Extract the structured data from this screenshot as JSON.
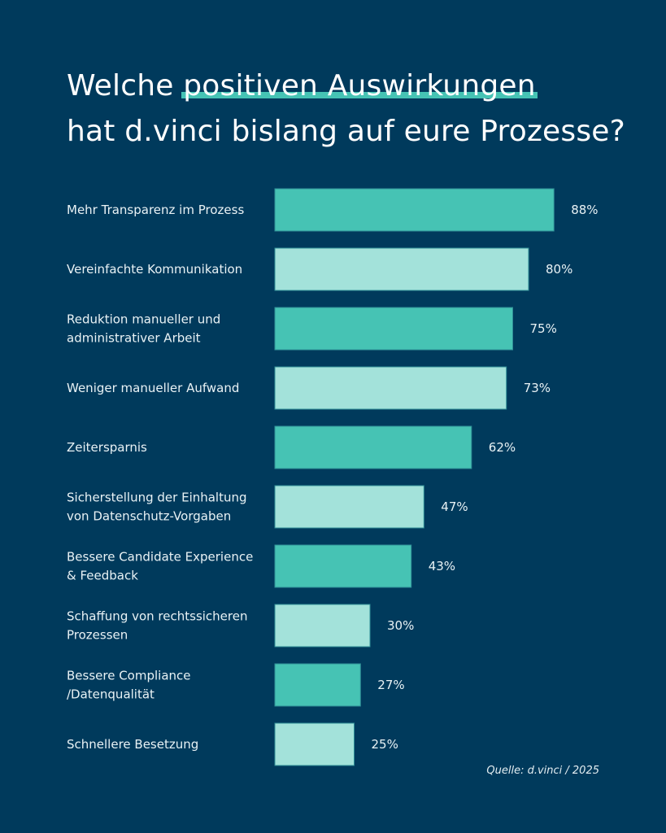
{
  "title": {
    "line1_prefix": "Welche ",
    "line1_highlight": "positiven Auswirkungen",
    "line2": "hat d.vinci bislang auf eure Prozesse?"
  },
  "colors": {
    "background": "#003a5c",
    "bar_dark": "#46c3b4",
    "bar_light": "#a3e2da",
    "highlight": "#46c3b4",
    "text": "#ffffff"
  },
  "source": "Quelle: d.vinci / 2025",
  "chart_data": {
    "type": "bar",
    "orientation": "horizontal",
    "title": "Welche positiven Auswirkungen hat d.vinci bislang auf eure Prozesse?",
    "xlabel": "",
    "ylabel": "",
    "unit": "%",
    "xlim": [
      0,
      100
    ],
    "grid": false,
    "legend": "none",
    "categories": [
      [
        "Mehr Transparenz im Prozess"
      ],
      [
        "Vereinfachte Kommunikation"
      ],
      [
        "Reduktion manueller und",
        "administrativer Arbeit"
      ],
      [
        "Weniger manueller Aufwand"
      ],
      [
        "Zeitersparnis"
      ],
      [
        "Sicherstellung der Einhaltung",
        "von Datenschutz-Vorgaben"
      ],
      [
        "Bessere Candidate Experience",
        "& Feedback"
      ],
      [
        "Schaffung von rechtssicheren",
        "Prozessen"
      ],
      [
        "Bessere Compliance",
        "/Datenqualität"
      ],
      [
        "Schnellere Besetzung"
      ]
    ],
    "values": [
      88,
      80,
      75,
      73,
      62,
      47,
      43,
      30,
      27,
      25
    ],
    "value_labels": [
      "88%",
      "80%",
      "75%",
      "73%",
      "62%",
      "47%",
      "43%",
      "30%",
      "27%",
      "25%"
    ],
    "bar_color_pattern": [
      "dark",
      "light"
    ],
    "source": "Quelle: d.vinci / 2025"
  }
}
